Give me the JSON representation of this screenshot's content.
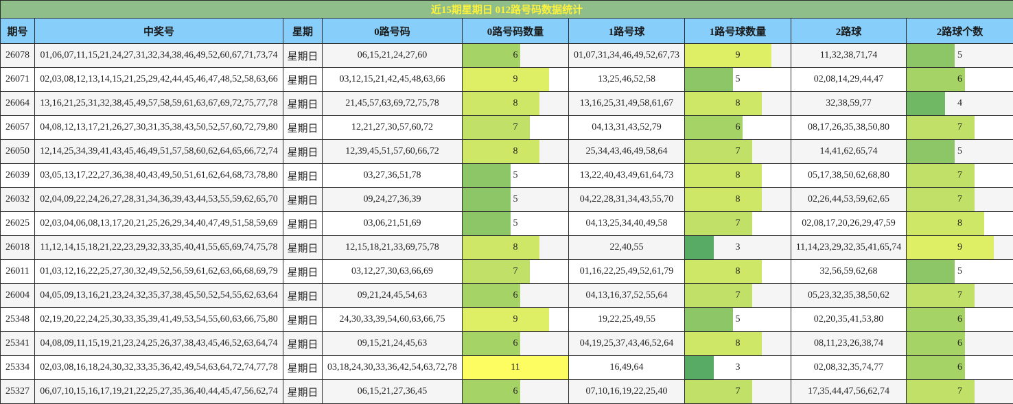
{
  "title": "近15期星期日 012路号码数据统计",
  "headers": {
    "issue": "期号",
    "winning": "中奖号",
    "weekday": "星期",
    "route0": "0路号码",
    "route0_count": "0路号码数量",
    "route1": "1路号球",
    "route1_count": "1路号球数量",
    "route2": "2路球",
    "route2_count": "2路球个数"
  },
  "bar_max": 11,
  "colors": {
    "title_bg": "#8fbe8a",
    "title_text": "#fdf23b",
    "header_bg": "#87cefa",
    "scale_low": "#57ab64",
    "scale_mid": "#c0e067",
    "scale_high": "#fdfd62"
  },
  "rows": [
    {
      "issue": "26078",
      "winning": "01,06,07,11,15,21,24,27,31,32,34,38,46,49,52,60,67,71,73,74",
      "weekday": "星期日",
      "r0": "06,15,21,24,27,60",
      "c0": 6,
      "r1": "01,07,31,34,46,49,52,67,73",
      "c1": 9,
      "r2": "11,32,38,71,74",
      "c2": 5
    },
    {
      "issue": "26071",
      "winning": "02,03,08,12,13,14,15,21,25,29,42,44,45,46,47,48,52,58,63,66",
      "weekday": "星期日",
      "r0": "03,12,15,21,42,45,48,63,66",
      "c0": 9,
      "r1": "13,25,46,52,58",
      "c1": 5,
      "r2": "02,08,14,29,44,47",
      "c2": 6
    },
    {
      "issue": "26064",
      "winning": "13,16,21,25,31,32,38,45,49,57,58,59,61,63,67,69,72,75,77,78",
      "weekday": "星期日",
      "r0": "21,45,57,63,69,72,75,78",
      "c0": 8,
      "r1": "13,16,25,31,49,58,61,67",
      "c1": 8,
      "r2": "32,38,59,77",
      "c2": 4
    },
    {
      "issue": "26057",
      "winning": "04,08,12,13,17,21,26,27,30,31,35,38,43,50,52,57,60,72,79,80",
      "weekday": "星期日",
      "r0": "12,21,27,30,57,60,72",
      "c0": 7,
      "r1": "04,13,31,43,52,79",
      "c1": 6,
      "r2": "08,17,26,35,38,50,80",
      "c2": 7
    },
    {
      "issue": "26050",
      "winning": "12,14,25,34,39,41,43,45,46,49,51,57,58,60,62,64,65,66,72,74",
      "weekday": "星期日",
      "r0": "12,39,45,51,57,60,66,72",
      "c0": 8,
      "r1": "25,34,43,46,49,58,64",
      "c1": 7,
      "r2": "14,41,62,65,74",
      "c2": 5
    },
    {
      "issue": "26039",
      "winning": "03,05,13,17,22,27,36,38,40,43,49,50,51,61,62,64,68,73,78,80",
      "weekday": "星期日",
      "r0": "03,27,36,51,78",
      "c0": 5,
      "r1": "13,22,40,43,49,61,64,73",
      "c1": 8,
      "r2": "05,17,38,50,62,68,80",
      "c2": 7
    },
    {
      "issue": "26032",
      "winning": "02,04,09,22,24,26,27,28,31,34,36,39,43,44,53,55,59,62,65,70",
      "weekday": "星期日",
      "r0": "09,24,27,36,39",
      "c0": 5,
      "r1": "04,22,28,31,34,43,55,70",
      "c1": 8,
      "r2": "02,26,44,53,59,62,65",
      "c2": 7
    },
    {
      "issue": "26025",
      "winning": "02,03,04,06,08,13,17,20,21,25,26,29,34,40,47,49,51,58,59,69",
      "weekday": "星期日",
      "r0": "03,06,21,51,69",
      "c0": 5,
      "r1": "04,13,25,34,40,49,58",
      "c1": 7,
      "r2": "02,08,17,20,26,29,47,59",
      "c2": 8
    },
    {
      "issue": "26018",
      "winning": "11,12,14,15,18,21,22,23,29,32,33,35,40,41,55,65,69,74,75,78",
      "weekday": "星期日",
      "r0": "12,15,18,21,33,69,75,78",
      "c0": 8,
      "r1": "22,40,55",
      "c1": 3,
      "r2": "11,14,23,29,32,35,41,65,74",
      "c2": 9
    },
    {
      "issue": "26011",
      "winning": "01,03,12,16,22,25,27,30,32,49,52,56,59,61,62,63,66,68,69,79",
      "weekday": "星期日",
      "r0": "03,12,27,30,63,66,69",
      "c0": 7,
      "r1": "01,16,22,25,49,52,61,79",
      "c1": 8,
      "r2": "32,56,59,62,68",
      "c2": 5
    },
    {
      "issue": "26004",
      "winning": "04,05,09,13,16,21,23,24,32,35,37,38,45,50,52,54,55,62,63,64",
      "weekday": "星期日",
      "r0": "09,21,24,45,54,63",
      "c0": 6,
      "r1": "04,13,16,37,52,55,64",
      "c1": 7,
      "r2": "05,23,32,35,38,50,62",
      "c2": 7
    },
    {
      "issue": "25348",
      "winning": "02,19,20,22,24,25,30,33,35,39,41,49,53,54,55,60,63,66,75,80",
      "weekday": "星期日",
      "r0": "24,30,33,39,54,60,63,66,75",
      "c0": 9,
      "r1": "19,22,25,49,55",
      "c1": 5,
      "r2": "02,20,35,41,53,80",
      "c2": 6
    },
    {
      "issue": "25341",
      "winning": "04,08,09,11,15,19,21,23,24,25,26,37,38,43,45,46,52,63,64,74",
      "weekday": "星期日",
      "r0": "09,15,21,24,45,63",
      "c0": 6,
      "r1": "04,19,25,37,43,46,52,64",
      "c1": 8,
      "r2": "08,11,23,26,38,74",
      "c2": 6
    },
    {
      "issue": "25334",
      "winning": "02,03,08,16,18,24,30,32,33,35,36,42,49,54,63,64,72,74,77,78",
      "weekday": "星期日",
      "r0": "03,18,24,30,33,36,42,54,63,72,78",
      "c0": 11,
      "r1": "16,49,64",
      "c1": 3,
      "r2": "02,08,32,35,74,77",
      "c2": 6
    },
    {
      "issue": "25327",
      "winning": "06,07,10,15,16,17,19,21,22,25,27,35,36,40,44,45,47,56,62,74",
      "weekday": "星期日",
      "r0": "06,15,21,27,36,45",
      "c0": 6,
      "r1": "07,10,16,19,22,25,40",
      "c1": 7,
      "r2": "17,35,44,47,56,62,74",
      "c2": 7
    }
  ]
}
